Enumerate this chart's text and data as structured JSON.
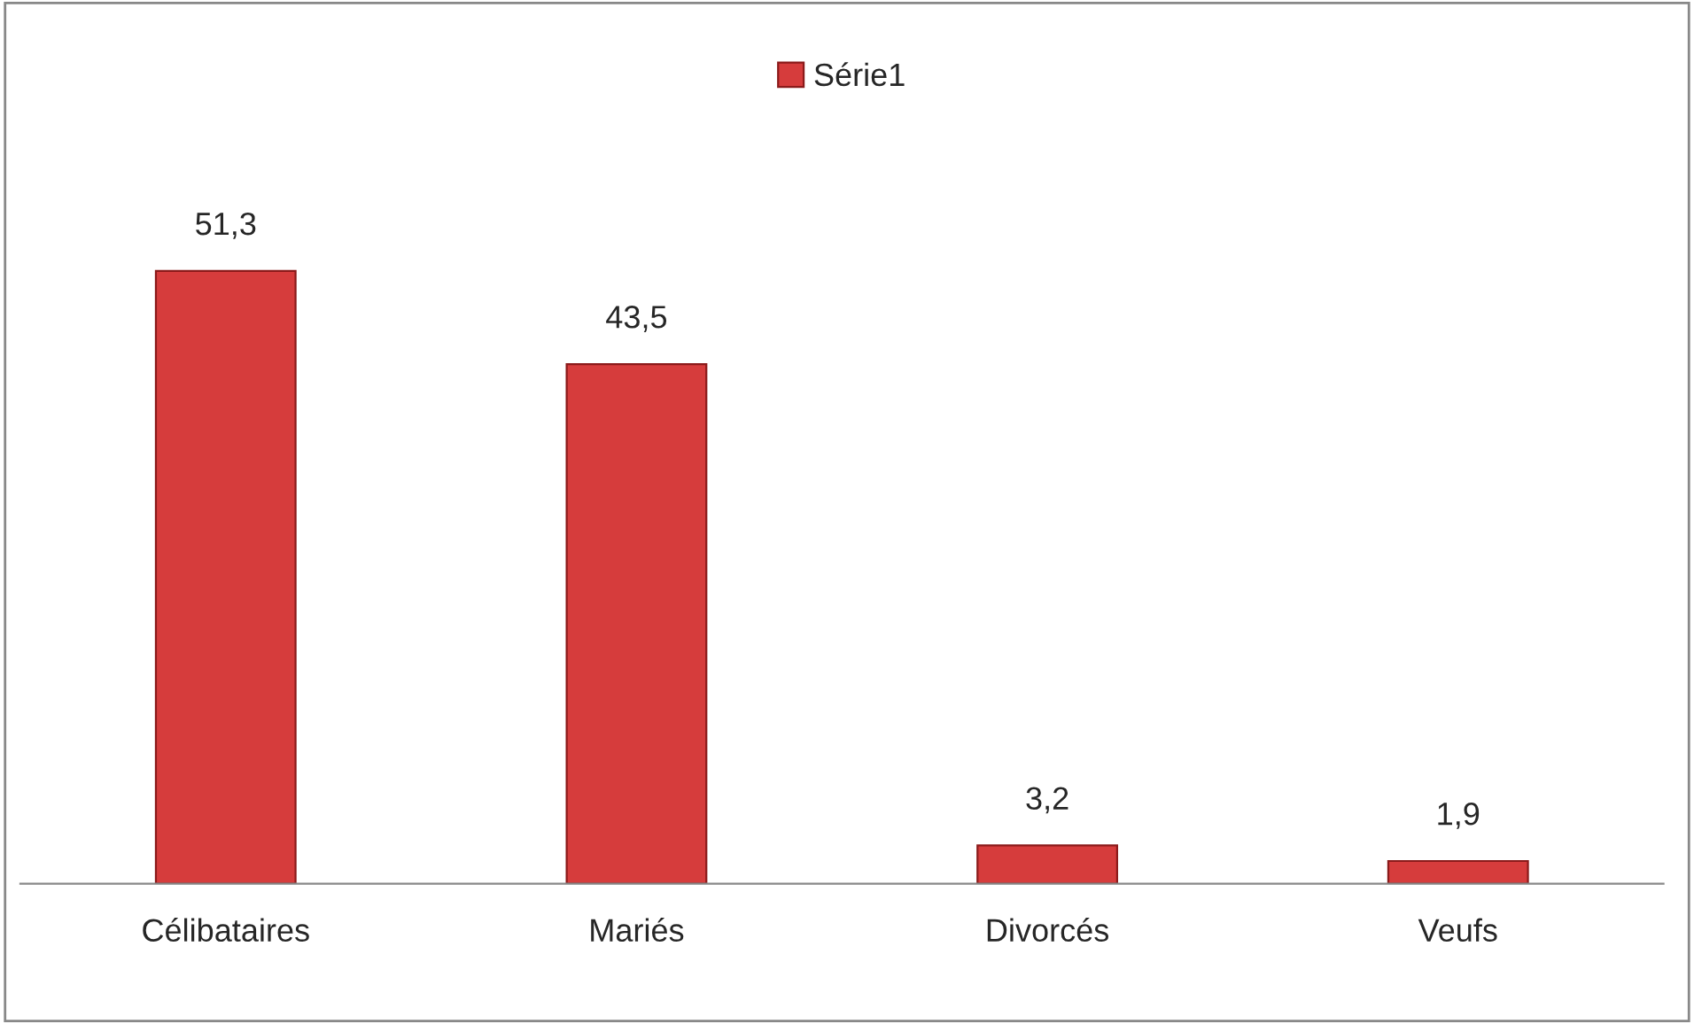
{
  "chart_data": {
    "type": "bar",
    "categories": [
      "Célibataires",
      "Mariés",
      "Divorcés",
      "Veufs"
    ],
    "series": [
      {
        "name": "Série1",
        "color": "#d63c3c",
        "values": [
          51.3,
          43.5,
          3.2,
          1.9
        ],
        "value_labels": [
          "51,3",
          "43,5",
          "3,2",
          "1,9"
        ]
      }
    ],
    "legend": "top",
    "grid": false
  }
}
